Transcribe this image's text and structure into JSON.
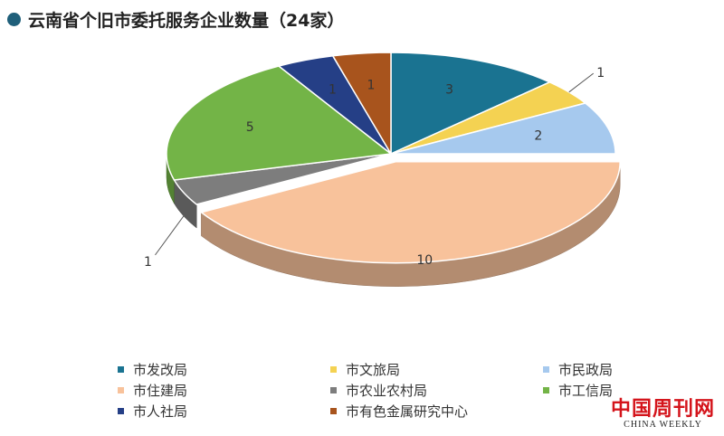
{
  "page": {
    "title": "云南省个旧市委托服务企业数量（24家）"
  },
  "chart_data": {
    "type": "pie",
    "title": "云南省个旧市委托服务企业数量（24家）",
    "total": 24,
    "start_angle_deg": 270,
    "slices": [
      {
        "label": "市发改局",
        "value": 3,
        "color": "#1a7391"
      },
      {
        "label": "市文旅局",
        "value": 1,
        "color": "#f4d252"
      },
      {
        "label": "市民政局",
        "value": 2,
        "color": "#a6c9ee"
      },
      {
        "label": "市住建局",
        "value": 10,
        "color": "#f8c29b"
      },
      {
        "label": "市农业农村局",
        "value": 1,
        "color": "#7d7d7d"
      },
      {
        "label": "市工信局",
        "value": 5,
        "color": "#73b447"
      },
      {
        "label": "市人社局",
        "value": 1,
        "color": "#253f86"
      },
      {
        "label": "市有色金属研究中心",
        "value": 1,
        "color": "#a8541d"
      }
    ],
    "legend_position": "bottom"
  },
  "watermark": {
    "cn": "中国周刊网",
    "en": "CHINA WEEKLY"
  }
}
